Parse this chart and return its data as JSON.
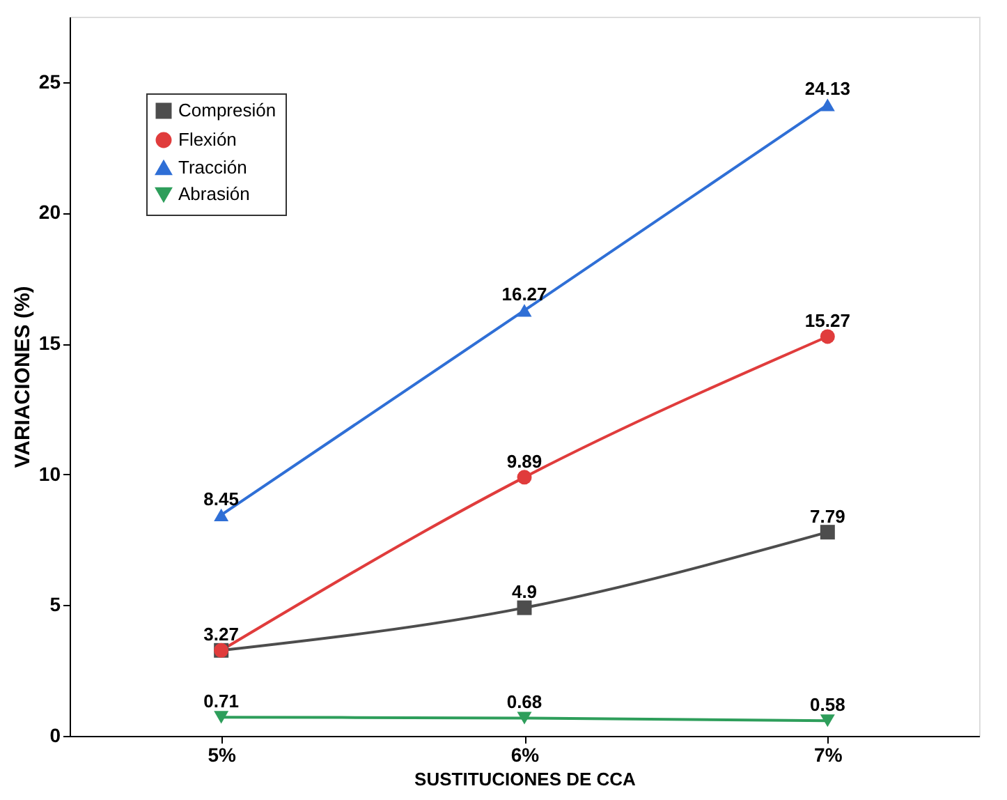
{
  "chart_data": {
    "type": "line",
    "xlabel": "SUSTITUCIONES DE CCA",
    "ylabel": "VARIACIONES (%)",
    "categories": [
      "5%",
      "6%",
      "7%"
    ],
    "series": [
      {
        "name": "Compresión",
        "color": "#4d4d4d",
        "marker": "square",
        "values": [
          3.27,
          4.9,
          7.79
        ],
        "value_labels": [
          "3.27",
          "4.9",
          "7.79"
        ]
      },
      {
        "name": "Flexión",
        "color": "#e03c3c",
        "marker": "circle",
        "values": [
          3.27,
          9.89,
          15.27
        ],
        "value_labels": [
          null,
          "9.89",
          "15.27"
        ]
      },
      {
        "name": "Tracción",
        "color": "#2f6fd6",
        "marker": "triangle",
        "values": [
          8.45,
          16.27,
          24.13
        ],
        "value_labels": [
          "8.45",
          "16.27",
          "24.13"
        ]
      },
      {
        "name": "Abrasión",
        "color": "#2e9e5b",
        "marker": "triangle-down",
        "values": [
          0.71,
          0.68,
          0.58
        ],
        "value_labels": [
          "0.71",
          "0.68",
          "0.58"
        ]
      }
    ],
    "ylim": [
      0,
      27.5
    ],
    "yticks": [
      0,
      5,
      10,
      15,
      20,
      25
    ],
    "grid": false,
    "legend": "top left",
    "line_style": "solid"
  }
}
